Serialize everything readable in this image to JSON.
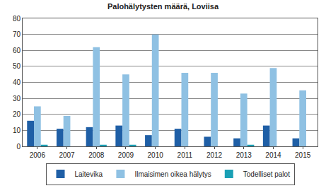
{
  "chart_data": {
    "type": "bar",
    "title": "Palohälytysten määrä, Loviisa",
    "categories": [
      "2006",
      "2007",
      "2008",
      "2009",
      "2010",
      "2011",
      "2012",
      "2013",
      "2014",
      "2015"
    ],
    "series": [
      {
        "name": "Laitevika",
        "color": "#1f5fa6",
        "values": [
          16,
          11,
          12,
          13,
          7,
          11,
          6,
          5,
          13,
          5
        ]
      },
      {
        "name": "Ilmaisimen oikea hälytys",
        "color": "#8fc1e3",
        "values": [
          25,
          19,
          62,
          45,
          70,
          46,
          46,
          33,
          49,
          35
        ]
      },
      {
        "name": "Todelliset palot",
        "color": "#1aa0b5",
        "values": [
          1,
          0,
          1,
          1,
          0,
          0,
          0,
          1,
          0,
          0
        ]
      }
    ],
    "ylim": [
      0,
      80
    ],
    "yticks": [
      0,
      10,
      20,
      30,
      40,
      50,
      60,
      70,
      80
    ],
    "grid": true,
    "legend": "bottom"
  }
}
